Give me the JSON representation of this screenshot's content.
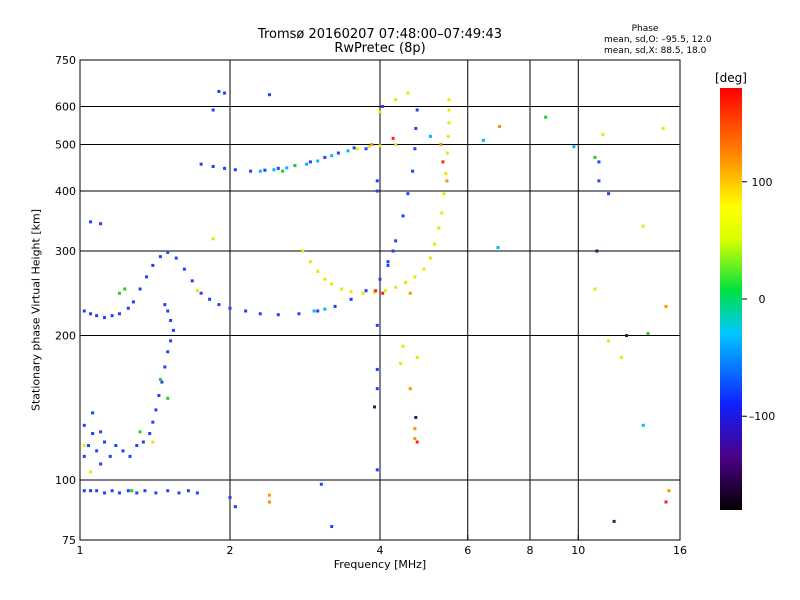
{
  "header": {
    "title_line1": "Tromsø 20160207 07:48:00–07:49:43",
    "title_line2": "RwPretec (8p)"
  },
  "phase_info": {
    "title": "Phase",
    "line_o": "mean, sd,O:  –95.5, 12.0",
    "line_x": "mean, sd,X:   88.5, 18.0"
  },
  "colorbar": {
    "unit": "[deg]",
    "ticks": [
      "100",
      "0",
      "–100"
    ],
    "tick_values": [
      100,
      0,
      -100
    ],
    "range": [
      -180,
      180
    ]
  },
  "chart_data": {
    "type": "scatter",
    "xlabel": "Frequency [MHz]",
    "ylabel": "Stationary phase Virtual Height [km]",
    "x_scale": "log",
    "y_scale": "log",
    "xlim": [
      1,
      16
    ],
    "ylim": [
      75,
      750
    ],
    "x_ticks": [
      1,
      2,
      4,
      6,
      8,
      10,
      16
    ],
    "x_tick_labels": [
      "1",
      "2",
      "4",
      "6",
      "8",
      "10",
      "16"
    ],
    "y_ticks": [
      75,
      100,
      200,
      300,
      400,
      500,
      600,
      750
    ],
    "y_tick_labels": [
      "75",
      "100",
      "200",
      "300",
      "400",
      "500",
      "600",
      "750"
    ],
    "x_gridlines": [
      1,
      2,
      4,
      6,
      8,
      10,
      16
    ],
    "y_gridlines": [
      100,
      200,
      300,
      400,
      500,
      600
    ],
    "grid": true,
    "series": [
      {
        "color": "#2040ff",
        "points": [
          [
            1.02,
            95
          ],
          [
            1.05,
            95
          ],
          [
            1.08,
            95
          ],
          [
            1.12,
            94
          ],
          [
            1.16,
            95
          ],
          [
            1.2,
            94
          ],
          [
            1.25,
            95
          ],
          [
            1.3,
            94
          ],
          [
            1.35,
            95
          ],
          [
            1.42,
            94
          ],
          [
            1.5,
            95
          ],
          [
            1.58,
            94
          ],
          [
            1.65,
            95
          ],
          [
            1.72,
            94
          ],
          [
            1.02,
            112
          ],
          [
            1.04,
            118
          ],
          [
            1.06,
            125
          ],
          [
            1.08,
            115
          ],
          [
            1.1,
            108
          ],
          [
            1.12,
            120
          ],
          [
            1.15,
            112
          ],
          [
            1.18,
            118
          ],
          [
            1.22,
            115
          ],
          [
            1.26,
            112
          ],
          [
            1.3,
            118
          ],
          [
            1.34,
            120
          ],
          [
            1.38,
            125
          ],
          [
            1.4,
            132
          ],
          [
            1.42,
            140
          ],
          [
            1.44,
            150
          ],
          [
            1.46,
            160
          ],
          [
            1.48,
            172
          ],
          [
            1.5,
            185
          ],
          [
            1.52,
            195
          ],
          [
            1.54,
            205
          ],
          [
            1.52,
            215
          ],
          [
            1.5,
            225
          ],
          [
            1.48,
            232
          ],
          [
            1.02,
            225
          ],
          [
            1.05,
            222
          ],
          [
            1.08,
            220
          ],
          [
            1.12,
            218
          ],
          [
            1.16,
            220
          ],
          [
            1.2,
            222
          ],
          [
            1.25,
            228
          ],
          [
            1.28,
            235
          ],
          [
            1.32,
            250
          ],
          [
            1.36,
            265
          ],
          [
            1.4,
            280
          ],
          [
            1.45,
            292
          ],
          [
            1.5,
            298
          ],
          [
            1.56,
            290
          ],
          [
            1.62,
            275
          ],
          [
            1.68,
            260
          ],
          [
            1.75,
            245
          ],
          [
            1.82,
            238
          ],
          [
            1.9,
            232
          ],
          [
            2.0,
            228
          ],
          [
            2.15,
            225
          ],
          [
            2.3,
            222
          ],
          [
            2.5,
            221
          ],
          [
            2.75,
            222
          ],
          [
            3.0,
            225
          ],
          [
            3.25,
            230
          ],
          [
            3.5,
            238
          ],
          [
            3.75,
            248
          ],
          [
            4.0,
            262
          ],
          [
            4.15,
            285
          ],
          [
            4.3,
            315
          ],
          [
            4.45,
            355
          ],
          [
            4.55,
            395
          ],
          [
            4.65,
            440
          ],
          [
            4.7,
            490
          ],
          [
            4.72,
            540
          ],
          [
            4.75,
            590
          ],
          [
            1.05,
            345
          ],
          [
            1.1,
            342
          ],
          [
            1.02,
            130
          ],
          [
            1.06,
            138
          ],
          [
            1.1,
            126
          ],
          [
            1.75,
            455
          ],
          [
            1.85,
            450
          ],
          [
            1.95,
            446
          ],
          [
            2.05,
            443
          ],
          [
            2.2,
            440
          ],
          [
            2.35,
            442
          ],
          [
            2.5,
            446
          ],
          [
            2.7,
            452
          ],
          [
            2.9,
            460
          ],
          [
            3.1,
            470
          ],
          [
            3.3,
            480
          ],
          [
            3.55,
            492
          ],
          [
            1.85,
            590
          ],
          [
            1.9,
            645
          ],
          [
            1.95,
            640
          ],
          [
            2.4,
            635
          ],
          [
            4.15,
            280
          ],
          [
            4.25,
            300
          ],
          [
            3.95,
            210
          ],
          [
            3.95,
            170
          ],
          [
            3.95,
            155
          ],
          [
            3.95,
            105
          ],
          [
            3.95,
            400
          ],
          [
            3.95,
            420
          ],
          [
            2.0,
            92
          ],
          [
            2.05,
            88
          ],
          [
            3.2,
            80
          ],
          [
            3.05,
            98
          ],
          [
            3.75,
            490
          ],
          [
            4.05,
            600
          ],
          [
            11.0,
            460
          ],
          [
            11.0,
            420
          ],
          [
            11.5,
            395
          ]
        ]
      },
      {
        "color": "#00b8ff",
        "points": [
          [
            2.3,
            440
          ],
          [
            2.45,
            443
          ],
          [
            2.6,
            447
          ],
          [
            2.85,
            455
          ],
          [
            3.0,
            462
          ],
          [
            3.2,
            474
          ],
          [
            3.45,
            485
          ],
          [
            2.95,
            225
          ],
          [
            3.1,
            227
          ],
          [
            5.05,
            520
          ],
          [
            6.9,
            305
          ],
          [
            9.8,
            495
          ],
          [
            13.5,
            130
          ],
          [
            6.45,
            510
          ]
        ]
      },
      {
        "color": "#20d020",
        "points": [
          [
            1.2,
            245
          ],
          [
            1.23,
            250
          ],
          [
            1.27,
            95
          ],
          [
            1.32,
            126
          ],
          [
            1.45,
            162
          ],
          [
            1.5,
            148
          ],
          [
            2.55,
            440
          ],
          [
            2.7,
            452
          ],
          [
            10.8,
            470
          ],
          [
            8.6,
            570
          ],
          [
            13.8,
            202
          ]
        ]
      },
      {
        "color": "#e8e800",
        "points": [
          [
            2.8,
            300
          ],
          [
            2.9,
            285
          ],
          [
            3.0,
            272
          ],
          [
            3.1,
            262
          ],
          [
            3.2,
            256
          ],
          [
            3.35,
            250
          ],
          [
            3.5,
            247
          ],
          [
            3.7,
            245
          ],
          [
            3.9,
            246
          ],
          [
            4.1,
            248
          ],
          [
            4.3,
            252
          ],
          [
            4.5,
            258
          ],
          [
            4.7,
            265
          ],
          [
            4.9,
            275
          ],
          [
            5.05,
            290
          ],
          [
            5.15,
            310
          ],
          [
            5.25,
            335
          ],
          [
            5.32,
            360
          ],
          [
            5.38,
            395
          ],
          [
            5.42,
            435
          ],
          [
            5.46,
            480
          ],
          [
            5.48,
            520
          ],
          [
            5.5,
            555
          ],
          [
            5.5,
            590
          ],
          [
            5.5,
            620
          ],
          [
            3.6,
            490
          ],
          [
            3.8,
            495
          ],
          [
            4.0,
            497
          ],
          [
            4.3,
            500
          ],
          [
            4.55,
            640
          ],
          [
            4.3,
            620
          ],
          [
            4.0,
            585
          ],
          [
            1.72,
            248
          ],
          [
            1.85,
            318
          ],
          [
            1.4,
            120
          ],
          [
            1.02,
            118
          ],
          [
            1.05,
            104
          ],
          [
            4.45,
            190
          ],
          [
            4.4,
            175
          ],
          [
            4.75,
            180
          ],
          [
            11.2,
            525
          ],
          [
            11.5,
            195
          ],
          [
            12.2,
            180
          ],
          [
            13.5,
            338
          ],
          [
            14.8,
            540
          ],
          [
            10.8,
            250
          ]
        ]
      },
      {
        "color": "#ff9000",
        "points": [
          [
            2.4,
            93
          ],
          [
            2.4,
            90
          ],
          [
            3.85,
            500
          ],
          [
            4.6,
            245
          ],
          [
            4.7,
            128
          ],
          [
            4.7,
            122
          ],
          [
            4.6,
            155
          ],
          [
            5.3,
            500
          ],
          [
            5.45,
            420
          ],
          [
            6.95,
            545
          ],
          [
            15.0,
            230
          ],
          [
            15.2,
            95
          ]
        ]
      },
      {
        "color": "#ff2020",
        "points": [
          [
            3.92,
            248
          ],
          [
            4.05,
            245
          ],
          [
            4.25,
            515
          ],
          [
            4.75,
            120
          ],
          [
            5.35,
            460
          ],
          [
            15.0,
            90
          ]
        ]
      },
      {
        "color": "#202060",
        "points": [
          [
            3.9,
            142
          ],
          [
            4.72,
            135
          ],
          [
            12.5,
            200
          ],
          [
            11.8,
            82
          ],
          [
            10.9,
            300
          ]
        ]
      }
    ]
  }
}
